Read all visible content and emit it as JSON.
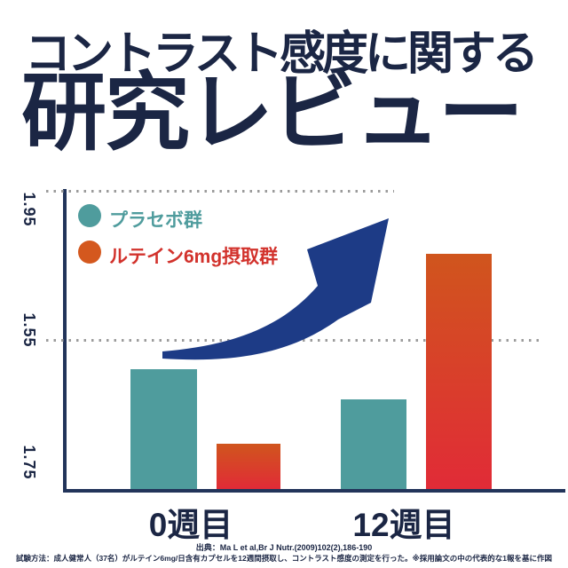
{
  "title": {
    "line1": "コントラスト感度に関する",
    "line2": "研究レビュー"
  },
  "chart_data": {
    "type": "bar",
    "title": "コントラスト感度に関する研究レビュー",
    "categories": [
      "0週目",
      "12週目"
    ],
    "series": [
      {
        "name": "プラセボ群",
        "values": [
          1.47,
          1.39
        ],
        "color": "#4f9c9d"
      },
      {
        "name": "ルテイン6mg摂取群",
        "values": [
          1.27,
          1.78
        ],
        "color_top": "#d0551d",
        "color_bottom": "#e12b37"
      }
    ],
    "yticks": [
      "1.95",
      "1.55",
      "1.75"
    ],
    "ylim": [
      1.15,
      1.95
    ],
    "gridlines": "horizontal dotted lines at top (1.95) and middle (1.55) tick positions",
    "legend_position": "top-left inside plot",
    "annotation": "large curved navy arrow sweeping up toward the tallest bar"
  },
  "legend": {
    "items": [
      {
        "label": "プラセボ群",
        "dot_color": "#4f9c9d",
        "text_color": "#4f9c9d"
      },
      {
        "label": "ルテイン6mg摂取群",
        "dot_color": "#d4581e",
        "text_color": "#d2322c"
      }
    ]
  },
  "footer": {
    "source": "出典：Ma L et al,Br J Nutr.(2009)102(2),186-190",
    "method": "試験方法：成人健常人（37名）がルテイン6mg/日含有カプセルを12週間摂取し、コントラスト感度の測定を行った。※採用論文の中の代表的な1報を基に作図"
  },
  "colors": {
    "title_navy": "#1b2644",
    "axis_navy": "#22345a",
    "arrow_blue": "#1d3b86",
    "teal": "#4f9c9d",
    "orange_top": "#d0551d",
    "orange_bottom": "#e12b37",
    "legend_red_text": "#d2322c",
    "dotted_gray": "#9b9b9b"
  }
}
